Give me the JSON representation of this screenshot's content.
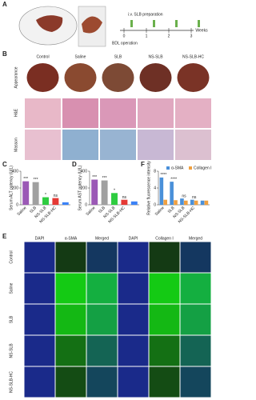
{
  "panels": {
    "a": "A",
    "b": "B",
    "c": "C",
    "d": "D",
    "e": "E",
    "f": "F"
  },
  "timeline": {
    "top_label": "i.v. SLB preparation",
    "bottom_label": "BDL operation",
    "ticks": [
      "0",
      "1",
      "2",
      "3"
    ],
    "unit": "Weeks"
  },
  "panel_b": {
    "columns": [
      "Control",
      "Saline",
      "SLB",
      "NS-SLB",
      "NS-SLB-HC"
    ],
    "rows": [
      "Appearance",
      "H&E",
      "Masson"
    ]
  },
  "panel_e": {
    "columns": [
      "DAPI",
      "α-SMA",
      "Merged",
      "DAPI",
      "Collagen I",
      "Merged"
    ],
    "rows": [
      "Control",
      "Saline",
      "SLB",
      "NS-SLB",
      "NS-SLB-HC"
    ]
  },
  "chart_data": [
    {
      "type": "bar",
      "y_label": "Serum ALT potency (U/L)",
      "categories": [
        "Saline",
        "SLB",
        "NS-SLB",
        "NS-SLB-HC",
        null
      ],
      "values": [
        280,
        270,
        90,
        80,
        30
      ],
      "colors": [
        "#9b59b6",
        "#a0a0a0",
        "#2ecc40",
        "#e53935",
        "#3b82f6"
      ],
      "annotations": [
        "***",
        "***",
        "*",
        "ns",
        null
      ],
      "ylim": [
        0,
        400
      ],
      "yticks": [
        0,
        200,
        400
      ]
    },
    {
      "type": "bar",
      "y_label": "Serum AST potency (U/L)",
      "categories": [
        "Saline",
        "SLB",
        "NS-SLB",
        "NS-SLB-HC",
        null
      ],
      "values": [
        300,
        290,
        140,
        60,
        40
      ],
      "colors": [
        "#9b59b6",
        "#a0a0a0",
        "#2ecc40",
        "#e53935",
        "#3b82f6"
      ],
      "annotations": [
        "***",
        "***",
        "*",
        "ns",
        null
      ],
      "ylim": [
        0,
        400
      ],
      "yticks": [
        0,
        200,
        400
      ]
    },
    {
      "type": "grouped-bar",
      "y_label": "Relative fluorescence intensity",
      "categories": [
        "Saline",
        "SLB",
        "NS-SLB",
        "NS-SLB-HC",
        null
      ],
      "series": [
        {
          "name": "α-SMA",
          "color": "#4a90d9",
          "values": [
            6.5,
            5.5,
            1.5,
            1.2,
            1
          ]
        },
        {
          "name": "Collagen I",
          "color": "#f0a040",
          "values": [
            1.2,
            1.1,
            1,
            1,
            1
          ]
        }
      ],
      "annotations": [
        "****",
        "****",
        "ns",
        "ns",
        null
      ],
      "ylim": [
        0,
        8
      ],
      "yticks": [
        0,
        4,
        8
      ]
    }
  ]
}
